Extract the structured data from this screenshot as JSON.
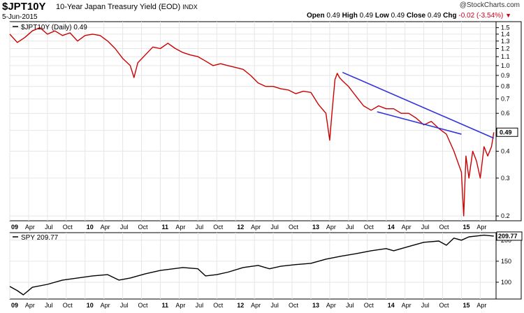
{
  "header": {
    "symbol": "$JPT10Y",
    "description": "10-Year Japan Treasury Yield (EOD)",
    "exchange": "INDX",
    "date": "5-Jun-2015",
    "brand": "@StockCharts.com",
    "ohlc": {
      "open_label": "Open",
      "open": "0.49",
      "high_label": "High",
      "high": "0.49",
      "low_label": "Low",
      "low": "0.49",
      "close_label": "Close",
      "close": "0.49",
      "chg_label": "Chg",
      "chg": "-0.02 (-3.54%)"
    }
  },
  "colors": {
    "yield_line": "#cc0000",
    "trendline": "#3333dd",
    "spy_line": "#000000",
    "grid": "#e6e6e6"
  },
  "chart_data": [
    {
      "type": "line",
      "legend": "$JPT10Y (Daily) 0.49",
      "last_value_label": "0.49",
      "y_scale": "log",
      "ylim": [
        0.19,
        1.6
      ],
      "y_ticks": [
        "1.5",
        "1.4",
        "1.3",
        "1.2",
        "1.1",
        "1.0",
        "0.9",
        "0.8",
        "0.7",
        "0.6",
        "0.5",
        "0.4",
        "0.3",
        "0.2"
      ],
      "x_tick_labels": [
        "09",
        "Apr",
        "Jul",
        "Oct",
        "10",
        "Apr",
        "Jul",
        "Oct",
        "11",
        "Apr",
        "Jul",
        "Oct",
        "12",
        "Apr",
        "Jul",
        "Oct",
        "13",
        "Apr",
        "Jul",
        "Oct",
        "14",
        "Apr",
        "Jul",
        "Oct",
        "15",
        "Apr"
      ],
      "x_year_labels": [
        "09",
        "10",
        "11",
        "12",
        "13",
        "14",
        "15"
      ],
      "series": [
        {
          "x": [
            2009.0,
            2009.1,
            2009.2,
            2009.3,
            2009.4,
            2009.5,
            2009.6,
            2009.7,
            2009.8,
            2009.9,
            2010.0,
            2010.1,
            2010.2,
            2010.3,
            2010.4,
            2010.5,
            2010.6,
            2010.65,
            2010.7,
            2010.8,
            2010.9,
            2011.0,
            2011.1,
            2011.2,
            2011.3,
            2011.4,
            2011.5,
            2011.6,
            2011.7,
            2011.8,
            2011.9,
            2012.0,
            2012.1,
            2012.2,
            2012.3,
            2012.4,
            2012.5,
            2012.6,
            2012.7,
            2012.8,
            2012.9,
            2013.0,
            2013.1,
            2013.2,
            2013.25,
            2013.28,
            2013.32,
            2013.35,
            2013.38,
            2013.42,
            2013.5,
            2013.6,
            2013.7,
            2013.8,
            2013.9,
            2014.0,
            2014.1,
            2014.2,
            2014.3,
            2014.4,
            2014.5,
            2014.6,
            2014.7,
            2014.8,
            2014.9,
            2015.0,
            2015.03,
            2015.06,
            2015.1,
            2015.15,
            2015.2,
            2015.25,
            2015.3,
            2015.35,
            2015.4,
            2015.43
          ],
          "y": [
            1.4,
            1.28,
            1.35,
            1.45,
            1.5,
            1.4,
            1.45,
            1.38,
            1.42,
            1.3,
            1.38,
            1.4,
            1.38,
            1.3,
            1.2,
            1.08,
            1.0,
            0.88,
            1.03,
            1.12,
            1.22,
            1.2,
            1.27,
            1.2,
            1.15,
            1.12,
            1.1,
            1.05,
            1.0,
            1.02,
            1.0,
            0.98,
            0.96,
            0.9,
            0.83,
            0.8,
            0.8,
            0.78,
            0.77,
            0.74,
            0.76,
            0.75,
            0.66,
            0.6,
            0.45,
            0.6,
            0.86,
            0.92,
            0.88,
            0.85,
            0.8,
            0.72,
            0.65,
            0.62,
            0.65,
            0.63,
            0.63,
            0.6,
            0.6,
            0.57,
            0.53,
            0.55,
            0.51,
            0.48,
            0.4,
            0.32,
            0.2,
            0.38,
            0.3,
            0.4,
            0.36,
            0.3,
            0.42,
            0.38,
            0.42,
            0.49
          ]
        }
      ],
      "annotations": [
        {
          "type": "trendline",
          "from": [
            2013.42,
            0.93
          ],
          "to": [
            2015.43,
            0.46
          ]
        },
        {
          "type": "trendline",
          "from": [
            2013.88,
            0.61
          ],
          "to": [
            2015.0,
            0.48
          ]
        }
      ]
    },
    {
      "type": "line",
      "legend": "SPY 209.77",
      "last_value_label": "209.77",
      "ylim": [
        60,
        218
      ],
      "y_ticks": [
        "200",
        "150",
        "100"
      ],
      "x_tick_labels": [
        "09",
        "Apr",
        "Jul",
        "Oct",
        "10",
        "Apr",
        "Jul",
        "Oct",
        "11",
        "Apr",
        "Jul",
        "Oct",
        "12",
        "Apr",
        "Jul",
        "Oct",
        "13",
        "Apr",
        "Jul",
        "Oct",
        "14",
        "Apr",
        "Jul",
        "Oct",
        "15",
        "Apr"
      ],
      "x_year_labels": [
        "09",
        "10",
        "11",
        "12",
        "13",
        "14",
        "15"
      ],
      "series": [
        {
          "x": [
            2009.0,
            2009.1,
            2009.18,
            2009.3,
            2009.5,
            2009.7,
            2009.9,
            2010.1,
            2010.3,
            2010.45,
            2010.6,
            2010.8,
            2011.0,
            2011.3,
            2011.5,
            2011.6,
            2011.75,
            2011.9,
            2012.1,
            2012.3,
            2012.45,
            2012.6,
            2012.8,
            2013.0,
            2013.2,
            2013.4,
            2013.6,
            2013.8,
            2014.0,
            2014.1,
            2014.3,
            2014.5,
            2014.7,
            2014.8,
            2014.9,
            2015.0,
            2015.1,
            2015.2,
            2015.3,
            2015.43
          ],
          "y": [
            90,
            80,
            70,
            88,
            95,
            105,
            110,
            115,
            118,
            105,
            110,
            120,
            128,
            135,
            132,
            115,
            118,
            124,
            135,
            140,
            132,
            138,
            142,
            145,
            155,
            162,
            168,
            175,
            180,
            175,
            185,
            195,
            198,
            188,
            205,
            200,
            208,
            210,
            212,
            209.77
          ]
        }
      ]
    }
  ]
}
